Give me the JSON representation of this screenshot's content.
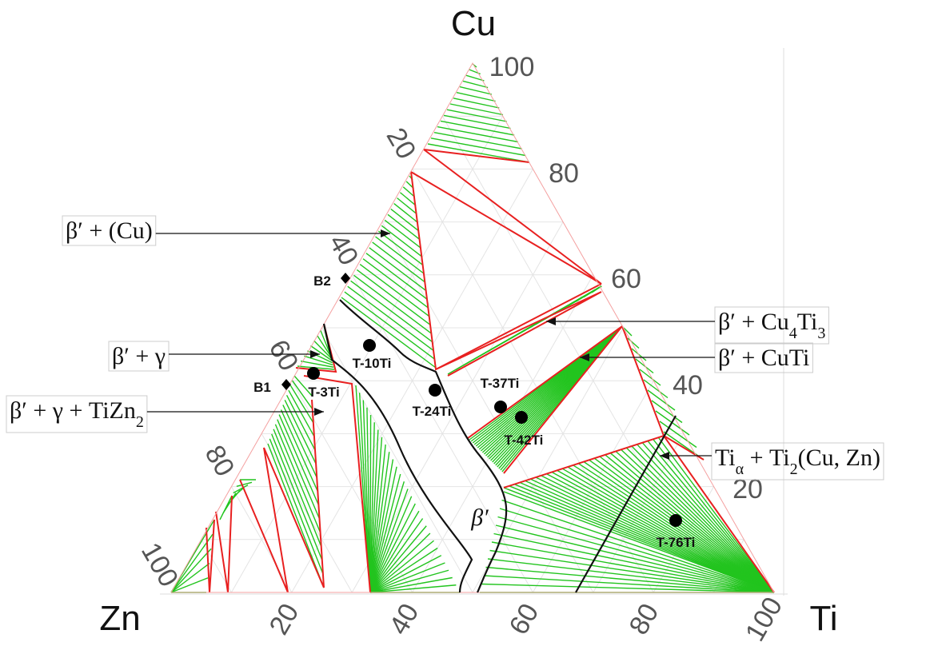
{
  "vertices": {
    "top": "Cu",
    "left": "Zn",
    "right": "Ti"
  },
  "axes": {
    "right": [
      100,
      80,
      60,
      40,
      20
    ],
    "left": [
      20,
      40,
      60,
      80,
      100
    ],
    "bottom": [
      20,
      40,
      60,
      80,
      100
    ]
  },
  "regions": [
    {
      "parts": [
        "β′ + (Cu)"
      ]
    },
    {
      "parts": [
        "β′ + γ"
      ]
    },
    {
      "parts": [
        "β′ + γ + TiZn",
        "2"
      ]
    },
    {
      "parts": [
        "β′ + Cu",
        "4",
        "Ti",
        "3"
      ]
    },
    {
      "parts": [
        "β′ + CuTi"
      ]
    },
    {
      "parts": [
        "Ti",
        "α",
        " + Ti",
        "2",
        "(Cu, Zn)"
      ]
    }
  ],
  "beta_label": "β′",
  "samples": [
    "T-10Ti",
    "T-3Ti",
    "T-24Ti",
    "T-37Ti",
    "T-42Ti",
    "T-76Ti"
  ],
  "reference_points": [
    "B2",
    "B1"
  ]
}
